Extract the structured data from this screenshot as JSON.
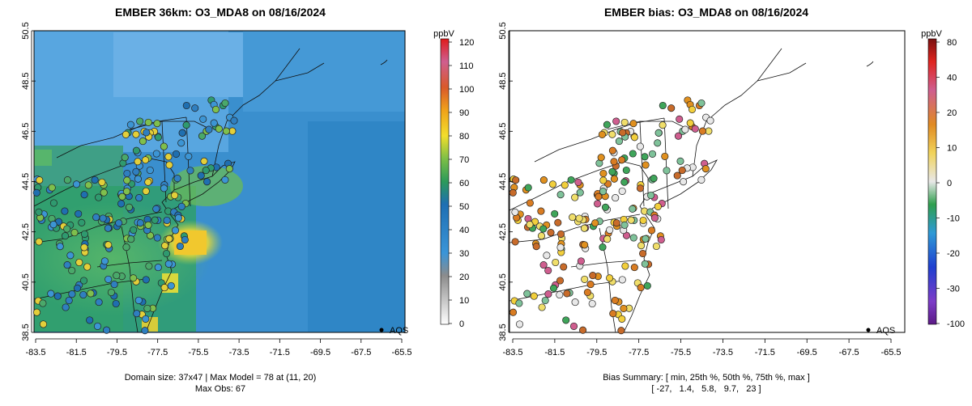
{
  "left_panel": {
    "title": "EMBER 36km: O3_MDA8 on 08/16/2024",
    "y_ticks": [
      "50.5",
      "48.5",
      "46.5",
      "44.5",
      "42.5",
      "40.5",
      "38.5"
    ],
    "x_ticks": [
      "-83.5",
      "-81.5",
      "-79.5",
      "-77.5",
      "-75.5",
      "-73.5",
      "-71.5",
      "-69.5",
      "-67.5",
      "-65.5"
    ],
    "legend_label": "AQS",
    "colorbar_unit": "ppbV",
    "colorbar_ticks": [
      "120",
      "110",
      "100",
      "90",
      "80",
      "70",
      "60",
      "50",
      "40",
      "30",
      "20",
      "10",
      "0"
    ],
    "caption_line1": "Domain size: 37x47 | Max Model = 78 at (11, 20)",
    "caption_line2": "Max Obs: 67"
  },
  "right_panel": {
    "title": "EMBER bias: O3_MDA8 on 08/16/2024",
    "y_ticks": [
      "50.5",
      "48.5",
      "46.5",
      "44.5",
      "42.5",
      "40.5",
      "38.5"
    ],
    "x_ticks": [
      "-83.5",
      "-81.5",
      "-79.5",
      "-77.5",
      "-75.5",
      "-73.5",
      "-71.5",
      "-69.5",
      "-67.5",
      "-65.5"
    ],
    "legend_label": "AQS",
    "colorbar_unit": "ppbV",
    "colorbar_ticks": [
      "80",
      "40",
      "20",
      "10",
      "0",
      "-10",
      "-20",
      "-30",
      "-100"
    ],
    "caption_line1": "Bias Summary: [ min, 25th %, 50th %, 75th %, max ]",
    "caption_line2": "[ -27,   1.4,   5.8,   9.7,   23 ]"
  },
  "colors": {
    "ocean": "#3b8fcf",
    "land_clean": "#4d98d6",
    "model_high": "#f2d834",
    "model_mid": "#3fae6a",
    "bias_high": "#d9842a",
    "bias_zero": "#e6e6e6",
    "bias_low": "#2f9f4e"
  }
}
